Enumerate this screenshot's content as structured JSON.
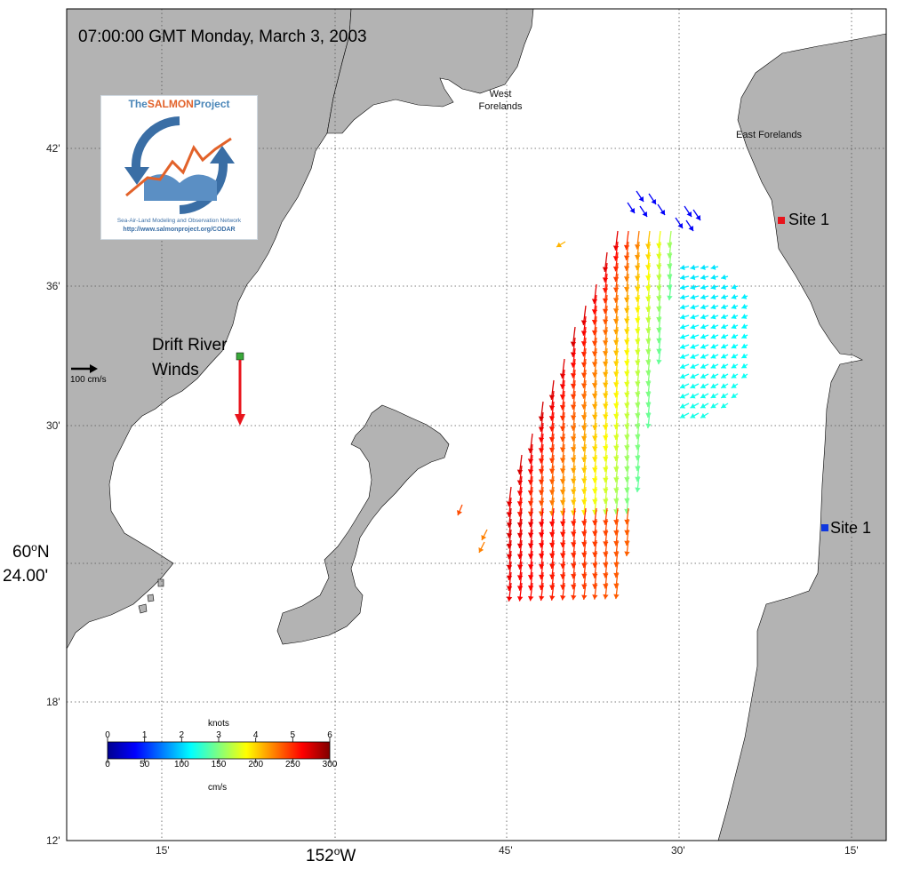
{
  "title": "07:00:00 GMT Monday, March 3, 2003",
  "logo": {
    "name_part1": "The",
    "name_part2": "SALMON",
    "name_part3": "Project",
    "tagline": "Sea-Air-Land Modeling and Observation Network",
    "url": "http://www.salmonproject.org/CODAR"
  },
  "places": {
    "west_forelands_1": "West",
    "west_forelands_2": "Forelands",
    "east_forelands": "East Forelands"
  },
  "sites": [
    {
      "label": "Site 1",
      "color": "#e8141c"
    },
    {
      "label": "Site 1",
      "color": "#1038e0"
    }
  ],
  "wind": {
    "label_line1": "Drift River",
    "label_line2": "Winds",
    "marker_color": "#3aa83a",
    "arrow_color": "#e8141c"
  },
  "scale_arrow": {
    "label": "100 cm/s"
  },
  "lat_ticks": [
    "42'",
    "36'",
    "30'",
    "18'",
    "12'"
  ],
  "lat_major": {
    "deg": "60",
    "sup": "o",
    "hemi": "N",
    "min": "24.00'"
  },
  "lon_ticks": [
    "15'",
    "45'",
    "30'",
    "15'"
  ],
  "lon_major": {
    "deg": "152",
    "sup": "o",
    "hemi": "W"
  },
  "colorbar": {
    "title_top": "knots",
    "title_bottom": "cm/s",
    "knots_ticks": [
      "0",
      "1",
      "2",
      "3",
      "4",
      "5",
      "6"
    ],
    "cms_ticks": [
      "0",
      "50",
      "100",
      "150",
      "200",
      "250",
      "300"
    ],
    "colormap": "jet"
  },
  "colors": {
    "land": "#b3b3b3",
    "water": "#ffffff",
    "grid": "#555555"
  }
}
